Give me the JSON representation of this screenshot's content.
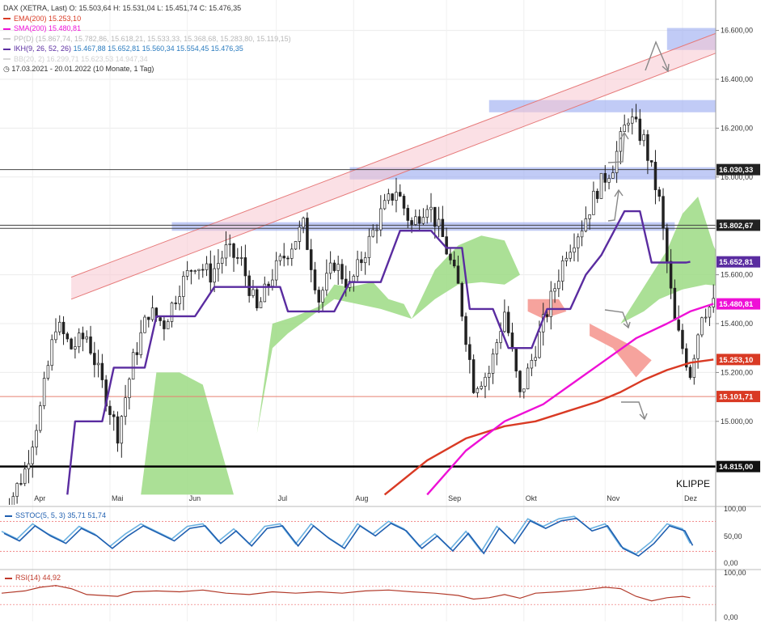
{
  "header": {
    "title_line": "DAX (XETRA, Last)  O: 15.503,64  H: 15.531,04  L: 15.451,74  C: 15.476,35",
    "indicators": [
      {
        "label": "EMA(200)",
        "value": "15.253,10",
        "color": "#d93a24"
      },
      {
        "label": "SMA(200)",
        "value": "15.480,81",
        "color": "#ee10d6"
      },
      {
        "label": "PP(D)",
        "value": "(15.867,74, 15.782,86, 15.618,21, 15.533,33, 15.368,68, 15.283,80, 15.119,15)",
        "color": "#c8c8c8"
      },
      {
        "label": "IKH(9, 26, 52, 26)",
        "value": "15.467,88  15.652,81  15.560,34  15.554,45  15.476,35",
        "color": "#5a2ca0"
      },
      {
        "label": "BB(20, 2)",
        "value": "16.299,71  15.623,53  14.947,34",
        "color": "#d8d8d8"
      }
    ],
    "period": "17.03.2021 - 20.01.2022  (10 Monate, 1 Tag)"
  },
  "annotations": {
    "klippe": "KLIPPE"
  },
  "price_labels": [
    {
      "value": 16030.33,
      "text": "16.030,33",
      "bg": "#222222"
    },
    {
      "value": 15802.67,
      "text": "15.802,67",
      "bg": "#222222"
    },
    {
      "value": 15652.81,
      "text": "15.652,81",
      "bg": "#5a2ca0"
    },
    {
      "value": 15480.81,
      "text": "15.480,81",
      "bg": "#ee10d6"
    },
    {
      "value": 15253.1,
      "text": "15.253,10",
      "bg": "#d93a24"
    },
    {
      "value": 15101.71,
      "text": "15.101,71",
      "bg": "#d93a24"
    },
    {
      "value": 14815.0,
      "text": "14.815,00",
      "bg": "#111111"
    }
  ],
  "oscillators": {
    "sstoc": {
      "label": "SSTOC(5, 5, 3)",
      "value1": "35,71",
      "value2": "51,74",
      "ticks": [
        "100,00",
        "50,00",
        "0,00"
      ]
    },
    "rsi": {
      "label": "RSI(14)",
      "value": "44,92",
      "ticks": [
        "100,00",
        "0,00"
      ]
    }
  },
  "chart_data": {
    "type": "line",
    "title": "DAX (XETRA, Last)",
    "y_ticks": [
      15000,
      15200,
      15400,
      15600,
      15800,
      16000,
      16200,
      16400,
      16600
    ],
    "y_tick_labels": [
      "15.000,00",
      "15.200,00",
      "15.400,00",
      "15.600,00",
      "15.800,00",
      "16.000,00",
      "16.200,00",
      "16.400,00",
      "16.600,00"
    ],
    "ylim": [
      14700,
      16700
    ],
    "month_labels": [
      "Apr",
      "Mai",
      "Jun",
      "Jul",
      "Aug",
      "Sep",
      "Okt",
      "Nov",
      "Dez"
    ],
    "month_day_index": [
      8,
      28,
      48,
      71,
      91,
      115,
      135,
      156,
      176
    ],
    "x_count": 185,
    "price_path": [
      [
        0,
        14600
      ],
      [
        6,
        14800
      ],
      [
        10,
        15050
      ],
      [
        14,
        15400
      ],
      [
        18,
        15300
      ],
      [
        22,
        15350
      ],
      [
        26,
        15150
      ],
      [
        30,
        14950
      ],
      [
        34,
        15250
      ],
      [
        38,
        15450
      ],
      [
        42,
        15400
      ],
      [
        46,
        15550
      ],
      [
        50,
        15650
      ],
      [
        54,
        15600
      ],
      [
        58,
        15700
      ],
      [
        62,
        15650
      ],
      [
        66,
        15450
      ],
      [
        70,
        15600
      ],
      [
        74,
        15700
      ],
      [
        78,
        15800
      ],
      [
        82,
        15500
      ],
      [
        86,
        15650
      ],
      [
        90,
        15550
      ],
      [
        94,
        15700
      ],
      [
        98,
        15850
      ],
      [
        102,
        15950
      ],
      [
        106,
        15800
      ],
      [
        110,
        15900
      ],
      [
        114,
        15750
      ],
      [
        118,
        15550
      ],
      [
        122,
        15150
      ],
      [
        126,
        15200
      ],
      [
        130,
        15450
      ],
      [
        134,
        15100
      ],
      [
        138,
        15300
      ],
      [
        142,
        15500
      ],
      [
        146,
        15700
      ],
      [
        150,
        15800
      ],
      [
        154,
        15950
      ],
      [
        158,
        16050
      ],
      [
        162,
        16250
      ],
      [
        166,
        16150
      ],
      [
        170,
        15900
      ],
      [
        174,
        15400
      ],
      [
        178,
        15200
      ],
      [
        181,
        15450
      ],
      [
        184,
        15476
      ]
    ],
    "series": [
      {
        "name": "EMA(200)",
        "color": "#d93a24",
        "points": [
          [
            99,
            14700
          ],
          [
            110,
            14840
          ],
          [
            120,
            14930
          ],
          [
            130,
            14980
          ],
          [
            138,
            15000
          ],
          [
            146,
            15040
          ],
          [
            154,
            15080
          ],
          [
            160,
            15120
          ],
          [
            166,
            15170
          ],
          [
            172,
            15210
          ],
          [
            178,
            15240
          ],
          [
            184,
            15253
          ]
        ]
      },
      {
        "name": "SMA(200)",
        "color": "#ee10d6",
        "points": [
          [
            110,
            14700
          ],
          [
            120,
            14880
          ],
          [
            130,
            15000
          ],
          [
            140,
            15070
          ],
          [
            148,
            15160
          ],
          [
            156,
            15250
          ],
          [
            164,
            15340
          ],
          [
            172,
            15400
          ],
          [
            178,
            15450
          ],
          [
            184,
            15481
          ]
        ]
      },
      {
        "name": "IKH Kijun",
        "color": "#5a2ca0",
        "points": [
          [
            17,
            14700
          ],
          [
            19,
            15000
          ],
          [
            26,
            15000
          ],
          [
            29,
            15220
          ],
          [
            37,
            15220
          ],
          [
            40,
            15430
          ],
          [
            50,
            15430
          ],
          [
            55,
            15550
          ],
          [
            72,
            15550
          ],
          [
            74,
            15450
          ],
          [
            86,
            15450
          ],
          [
            90,
            15570
          ],
          [
            98,
            15570
          ],
          [
            103,
            15780
          ],
          [
            111,
            15780
          ],
          [
            115,
            15710
          ],
          [
            119,
            15710
          ],
          [
            121,
            15460
          ],
          [
            127,
            15460
          ],
          [
            131,
            15300
          ],
          [
            137,
            15300
          ],
          [
            141,
            15460
          ],
          [
            147,
            15460
          ],
          [
            151,
            15600
          ],
          [
            155,
            15680
          ],
          [
            161,
            15860
          ],
          [
            165,
            15860
          ],
          [
            168,
            15650
          ],
          [
            176,
            15650
          ],
          [
            177,
            15650
          ],
          [
            178,
            15653
          ]
        ]
      }
    ],
    "cloud_green": [
      [
        [
          36,
          14700
        ],
        [
          40,
          15200
        ],
        [
          46,
          15200
        ],
        [
          52,
          15150
        ],
        [
          60,
          14700
        ]
      ],
      [
        [
          66,
          14950
        ],
        [
          70,
          15400
        ],
        [
          76,
          15430
        ],
        [
          82,
          15470
        ],
        [
          86,
          15560
        ],
        [
          90,
          15550
        ],
        [
          96,
          15570
        ],
        [
          100,
          15500
        ],
        [
          104,
          15480
        ],
        [
          106,
          15420
        ],
        [
          102,
          15440
        ],
        [
          98,
          15460
        ],
        [
          92,
          15480
        ],
        [
          86,
          15500
        ],
        [
          80,
          15430
        ],
        [
          74,
          15360
        ],
        [
          70,
          15300
        ]
      ],
      [
        [
          106,
          15420
        ],
        [
          112,
          15620
        ],
        [
          118,
          15720
        ],
        [
          124,
          15760
        ],
        [
          130,
          15740
        ],
        [
          134,
          15600
        ],
        [
          130,
          15560
        ],
        [
          124,
          15570
        ],
        [
          118,
          15560
        ],
        [
          112,
          15500
        ]
      ],
      [
        [
          160,
          15400
        ],
        [
          166,
          15550
        ],
        [
          172,
          15700
        ],
        [
          176,
          15850
        ],
        [
          180,
          15920
        ],
        [
          184,
          15720
        ],
        [
          188,
          15580
        ],
        [
          192,
          15550
        ],
        [
          188,
          15550
        ],
        [
          182,
          15560
        ],
        [
          176,
          15540
        ],
        [
          170,
          15500
        ],
        [
          166,
          15450
        ]
      ]
    ],
    "cloud_red": [
      [
        [
          136,
          15500
        ],
        [
          144,
          15500
        ],
        [
          146,
          15450
        ],
        [
          140,
          15420
        ],
        [
          136,
          15450
        ]
      ],
      [
        [
          152,
          15400
        ],
        [
          158,
          15350
        ],
        [
          164,
          15300
        ],
        [
          168,
          15250
        ],
        [
          164,
          15180
        ],
        [
          158,
          15300
        ],
        [
          152,
          15350
        ]
      ],
      [
        [
          188,
          15550
        ],
        [
          192,
          15555
        ],
        [
          190,
          15540
        ]
      ]
    ],
    "channel": {
      "lower": [
        [
          18,
          15500
        ],
        [
          200,
          16600
        ]
      ],
      "upper": [
        [
          18,
          15590
        ],
        [
          200,
          16680
        ]
      ]
    },
    "zones": [
      {
        "from": 16520,
        "to": 16610,
        "x0": 172,
        "x1": 200
      },
      {
        "from": 16265,
        "to": 16315,
        "x0": 126,
        "x1": 200
      },
      {
        "from": 15990,
        "to": 16040,
        "x0": 90,
        "x1": 200
      },
      {
        "from": 15780,
        "to": 15815,
        "x0": 44,
        "x1": 174
      }
    ],
    "h_lines": [
      {
        "value": 16030.33,
        "color": "#444444"
      },
      {
        "value": 15802.67,
        "color": "#444444"
      },
      {
        "value": 15790,
        "color": "#444444"
      },
      {
        "value": 15101.71,
        "color": "#e88070"
      },
      {
        "value": 14815.0,
        "color": "#000000"
      }
    ],
    "sstoc_points": [
      [
        0,
        60
      ],
      [
        4,
        45
      ],
      [
        8,
        75
      ],
      [
        12,
        55
      ],
      [
        16,
        40
      ],
      [
        20,
        70
      ],
      [
        24,
        55
      ],
      [
        28,
        30
      ],
      [
        32,
        55
      ],
      [
        36,
        75
      ],
      [
        40,
        60
      ],
      [
        44,
        45
      ],
      [
        48,
        70
      ],
      [
        52,
        75
      ],
      [
        56,
        40
      ],
      [
        60,
        65
      ],
      [
        64,
        35
      ],
      [
        68,
        70
      ],
      [
        72,
        75
      ],
      [
        76,
        35
      ],
      [
        80,
        75
      ],
      [
        84,
        50
      ],
      [
        88,
        30
      ],
      [
        92,
        75
      ],
      [
        96,
        55
      ],
      [
        100,
        80
      ],
      [
        104,
        65
      ],
      [
        108,
        30
      ],
      [
        112,
        55
      ],
      [
        116,
        25
      ],
      [
        120,
        60
      ],
      [
        124,
        20
      ],
      [
        128,
        70
      ],
      [
        132,
        40
      ],
      [
        136,
        85
      ],
      [
        140,
        70
      ],
      [
        144,
        85
      ],
      [
        148,
        90
      ],
      [
        152,
        65
      ],
      [
        156,
        75
      ],
      [
        160,
        30
      ],
      [
        164,
        15
      ],
      [
        168,
        40
      ],
      [
        172,
        75
      ],
      [
        176,
        65
      ],
      [
        178,
        36
      ]
    ],
    "rsi_points": [
      [
        0,
        55
      ],
      [
        6,
        60
      ],
      [
        10,
        68
      ],
      [
        14,
        72
      ],
      [
        18,
        65
      ],
      [
        22,
        52
      ],
      [
        26,
        50
      ],
      [
        30,
        48
      ],
      [
        34,
        58
      ],
      [
        40,
        60
      ],
      [
        46,
        58
      ],
      [
        52,
        62
      ],
      [
        58,
        55
      ],
      [
        64,
        52
      ],
      [
        70,
        58
      ],
      [
        76,
        55
      ],
      [
        82,
        58
      ],
      [
        88,
        55
      ],
      [
        94,
        60
      ],
      [
        100,
        62
      ],
      [
        106,
        58
      ],
      [
        112,
        55
      ],
      [
        118,
        50
      ],
      [
        122,
        42
      ],
      [
        126,
        45
      ],
      [
        130,
        52
      ],
      [
        134,
        44
      ],
      [
        138,
        55
      ],
      [
        144,
        58
      ],
      [
        150,
        62
      ],
      [
        156,
        68
      ],
      [
        160,
        65
      ],
      [
        164,
        48
      ],
      [
        168,
        38
      ],
      [
        172,
        45
      ],
      [
        176,
        48
      ],
      [
        178,
        45
      ]
    ]
  }
}
